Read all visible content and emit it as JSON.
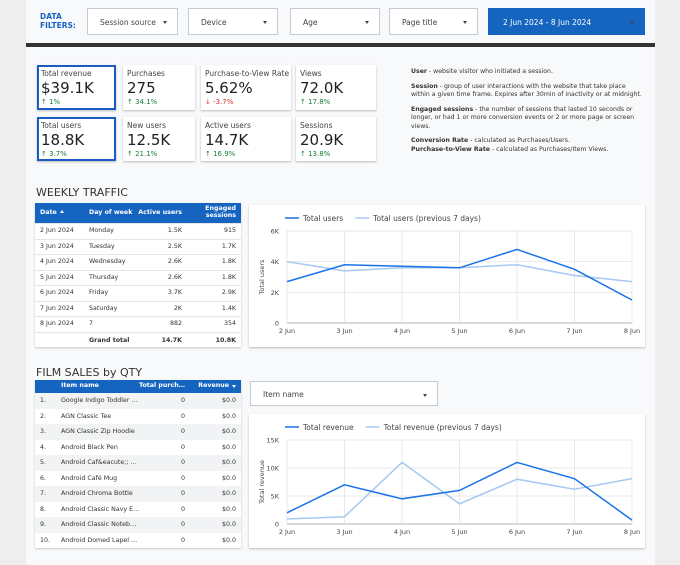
{
  "filters": {
    "label": "DATA FILTERS:",
    "dropdowns": [
      "Session source",
      "Device",
      "Age",
      "Page title"
    ],
    "date_range": "2 Jun 2024 - 8 Jun 2024"
  },
  "kpis": [
    {
      "label": "Total revenue",
      "value": "$39.1K",
      "delta": "↑ 1%",
      "selected": true
    },
    {
      "label": "Purchases",
      "value": "275",
      "delta": "↑ 34.1%",
      "selected": false
    },
    {
      "label": "Purchase-to-View Rate",
      "value": "5.62%",
      "delta": "↓ -3.7%",
      "selected": false
    },
    {
      "label": "Views",
      "value": "72.0K",
      "delta": "↑ 17.8%",
      "selected": false
    },
    {
      "label": "Total users",
      "value": "18.8K",
      "delta": "↑ 3.7%",
      "selected": true
    },
    {
      "label": "New users",
      "value": "12.5K",
      "delta": "↑ 21.1%",
      "selected": false
    },
    {
      "label": "Active users",
      "value": "14.7K",
      "delta": "↑ 16.9%",
      "selected": false
    },
    {
      "label": "Sessions",
      "value": "20.9K",
      "delta": "↑ 13.8%",
      "selected": false
    }
  ],
  "notes": [
    {
      "term": "User",
      "text": " - website visitor who initiated a session."
    },
    {
      "term": "Session",
      "text": " - group of user interactions with the website that take place within a given time frame. Expires after 30min of inactivity or at midnight."
    },
    {
      "term": "Engaged sessions",
      "text": " - the number of sessions that lasted 10 seconds or longer, or had 1 or more conversion events or 2 or more page or screen views."
    },
    {
      "term": "Conversion Rate",
      "text": " - calculated as Purchases/Users."
    },
    {
      "term": "Purchase-to-View Rate",
      "text": " - calculated as Purchases/Item Views."
    }
  ],
  "weekly_traffic": {
    "title": "WEEKLY TRAFFIC",
    "table": {
      "header": [
        "Date",
        "Day of week",
        "Active users",
        "Engaged sessions"
      ],
      "rows": [
        [
          "2 Jun 2024",
          "Monday",
          "1.5K",
          "915"
        ],
        [
          "3 Jun 2024",
          "Tuesday",
          "2.5K",
          "1.7K"
        ],
        [
          "4 Jun 2024",
          "Wednesday",
          "2.6K",
          "1.8K"
        ],
        [
          "5 Jun 2024",
          "Thursday",
          "2.6K",
          "1.8K"
        ],
        [
          "6 Jun 2024",
          "Friday",
          "3.7K",
          "2.9K"
        ],
        [
          "7 Jun 2024",
          "Saturday",
          "2K",
          "1.4K"
        ],
        [
          "8 Jun 2024",
          "7",
          "882",
          "354"
        ]
      ],
      "total": [
        "Grand total",
        "14.7K",
        "10.8K"
      ]
    }
  },
  "film_sales": {
    "title": "FILM SALES by QTY",
    "dropdown": "Item name",
    "table": {
      "header": [
        "Item name",
        "Total purch…",
        "Revenue"
      ],
      "rows": [
        [
          "1.",
          "Google Indigo Toddler …",
          "0",
          "$0.0"
        ],
        [
          "2.",
          "AGN Classic Tee",
          "0",
          "$0.0"
        ],
        [
          "3.",
          "AGN Classic Zip Hoodie",
          "0",
          "$0.0"
        ],
        [
          "4.",
          "Android Black Pen",
          "0",
          "$0.0"
        ],
        [
          "5.",
          "Android Caf&eacute;; …",
          "0",
          "$0.0"
        ],
        [
          "6.",
          "Android Café Mug",
          "0",
          "$0.0"
        ],
        [
          "7.",
          "Android Chroma Bottle",
          "0",
          "$0.0"
        ],
        [
          "8.",
          "Android Classic Navy E…",
          "0",
          "$0.0"
        ],
        [
          "9.",
          "Android Classic Noteb…",
          "0",
          "$0.0"
        ],
        [
          "10.",
          "Android Domed Lapel …",
          "0",
          "$0.0"
        ]
      ]
    }
  },
  "chart_data": [
    {
      "type": "line",
      "y_label": "Total users",
      "categories": [
        "2 Jun",
        "3 Jun",
        "4 Jun",
        "5 Jun",
        "6 Jun",
        "7 Jun",
        "8 Jun"
      ],
      "series": [
        {
          "name": "Total users",
          "color": "#1a73e8",
          "values": [
            2700,
            3800,
            3700,
            3600,
            4800,
            3500,
            1500
          ]
        },
        {
          "name": "Total users (previous 7 days)",
          "color": "#a7c8f2",
          "values": [
            4000,
            3400,
            3600,
            3600,
            3800,
            3100,
            2700
          ]
        }
      ],
      "ylim": [
        0,
        6000
      ],
      "yticks": [
        0,
        {
          "value": 2000,
          "label": "2K"
        },
        {
          "value": 4000,
          "label": "4K"
        },
        {
          "value": 6000,
          "label": "6K"
        }
      ],
      "grid": true,
      "legend": "top"
    },
    {
      "type": "line",
      "y_label": "Total revenue",
      "categories": [
        "2 Jun",
        "3 Jun",
        "4 Jun",
        "5 Jun",
        "6 Jun",
        "7 Jun",
        "8 Jun"
      ],
      "series": [
        {
          "name": "Total revenue",
          "color": "#1a73e8",
          "values": [
            2000,
            7000,
            4500,
            6000,
            11000,
            8100,
            700
          ]
        },
        {
          "name": "Total revenue (previous 7 days)",
          "color": "#a7c8f2",
          "values": [
            900,
            1300,
            11000,
            3600,
            8000,
            6200,
            8100
          ]
        }
      ],
      "ylim": [
        0,
        15000
      ],
      "yticks": [
        0,
        {
          "value": 5000,
          "label": "5K"
        },
        {
          "value": 10000,
          "label": "10K"
        },
        {
          "value": 15000,
          "label": "15K"
        }
      ],
      "grid": true,
      "legend": "top"
    }
  ]
}
